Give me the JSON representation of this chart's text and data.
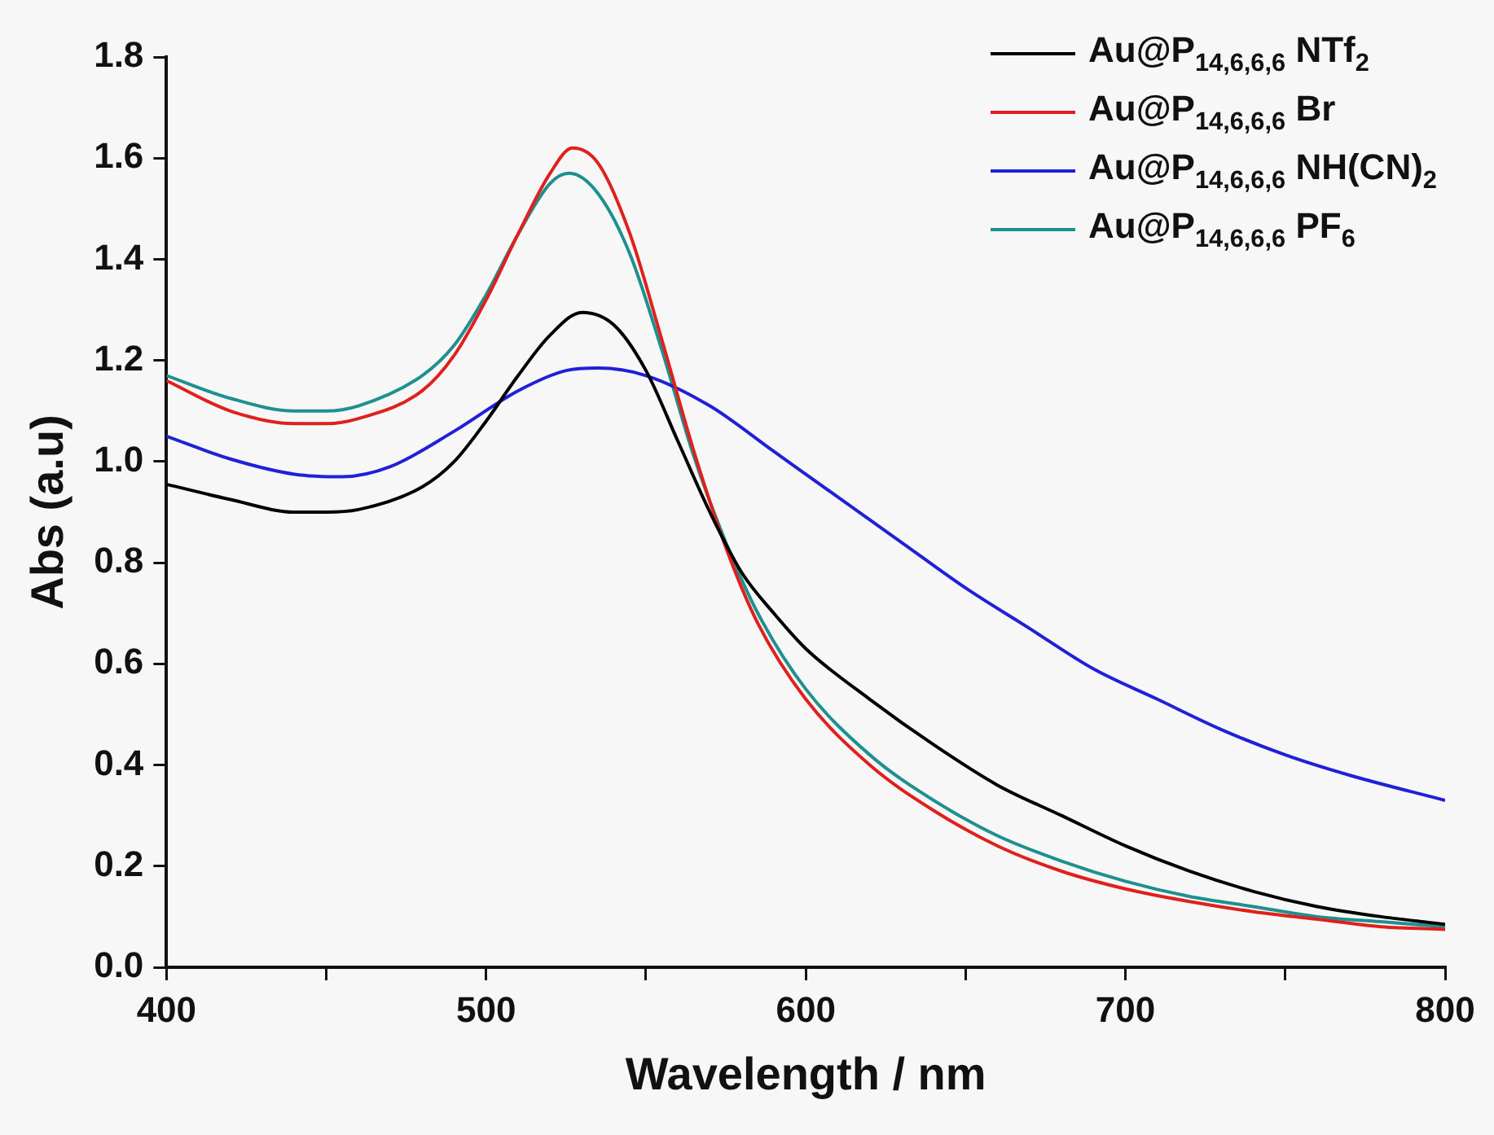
{
  "chart_data": {
    "type": "line",
    "xlabel": "Wavelength / nm",
    "ylabel": "Abs (a.u)",
    "xlim": [
      400,
      800
    ],
    "xticks": [
      400,
      {
        "value": 450,
        "label": null
      },
      500,
      {
        "value": 550,
        "label": null
      },
      600,
      {
        "value": 650,
        "label": null
      },
      700,
      {
        "value": 750,
        "label": null
      },
      800
    ],
    "ylim": [
      0,
      1.8
    ],
    "yticks": [
      {
        "value": 0,
        "label": "0.0"
      },
      0.2,
      0.4,
      0.6,
      0.8,
      {
        "value": 1,
        "label": "1.0"
      },
      1.2,
      1.4,
      1.6,
      1.8
    ],
    "grid": false,
    "legend": "top right",
    "marker": "none",
    "line_style": "solid",
    "series": [
      {
        "name": "Au@P$_{14,6,6,6}$ NTf$_{2}$",
        "color": "#000000",
        "x": [
          400,
          420,
          440,
          450,
          460,
          480,
          490,
          500,
          510,
          520,
          530,
          540,
          550,
          560,
          570,
          580,
          590,
          600,
          620,
          640,
          660,
          680,
          700,
          720,
          740,
          760,
          780,
          800
        ],
        "values": [
          0.955,
          0.925,
          0.9,
          0.9,
          0.905,
          0.95,
          1.0,
          1.08,
          1.17,
          1.25,
          1.295,
          1.27,
          1.18,
          1.04,
          0.9,
          0.78,
          0.7,
          0.63,
          0.53,
          0.44,
          0.36,
          0.3,
          0.24,
          0.19,
          0.15,
          0.12,
          0.1,
          0.085
        ]
      },
      {
        "name": "Au@P$_{14,6,6,6}$ Br",
        "color": "#e0201c",
        "x": [
          400,
          420,
          440,
          450,
          460,
          480,
          490,
          500,
          510,
          520,
          527,
          535,
          545,
          555,
          565,
          575,
          585,
          600,
          620,
          640,
          660,
          680,
          700,
          720,
          740,
          760,
          780,
          800
        ],
        "values": [
          1.16,
          1.1,
          1.075,
          1.075,
          1.085,
          1.14,
          1.21,
          1.32,
          1.45,
          1.57,
          1.62,
          1.59,
          1.45,
          1.24,
          1.02,
          0.83,
          0.68,
          0.53,
          0.4,
          0.31,
          0.24,
          0.19,
          0.155,
          0.13,
          0.11,
          0.095,
          0.08,
          0.075
        ]
      },
      {
        "name": "Au@P$_{14,6,6,6}$ NH(CN)$_{2}$",
        "color": "#2020d8",
        "x": [
          400,
          420,
          440,
          455,
          470,
          490,
          510,
          525,
          535,
          550,
          570,
          590,
          610,
          630,
          650,
          670,
          690,
          710,
          730,
          750,
          770,
          800
        ],
        "values": [
          1.05,
          1.005,
          0.975,
          0.97,
          0.99,
          1.06,
          1.14,
          1.18,
          1.185,
          1.17,
          1.11,
          1.02,
          0.93,
          0.84,
          0.75,
          0.67,
          0.59,
          0.53,
          0.47,
          0.42,
          0.38,
          0.33
        ]
      },
      {
        "name": "Au@P$_{14,6,6,6}$ PF$_{6}$",
        "color": "#1f9090",
        "x": [
          400,
          420,
          440,
          450,
          460,
          480,
          490,
          500,
          510,
          520,
          526,
          535,
          545,
          555,
          565,
          575,
          585,
          600,
          620,
          640,
          660,
          680,
          700,
          720,
          740,
          760,
          780,
          800
        ],
        "values": [
          1.17,
          1.125,
          1.1,
          1.1,
          1.11,
          1.17,
          1.23,
          1.33,
          1.45,
          1.55,
          1.57,
          1.53,
          1.41,
          1.22,
          1.01,
          0.84,
          0.7,
          0.55,
          0.42,
          0.33,
          0.26,
          0.21,
          0.17,
          0.14,
          0.12,
          0.1,
          0.09,
          0.08
        ]
      }
    ]
  }
}
